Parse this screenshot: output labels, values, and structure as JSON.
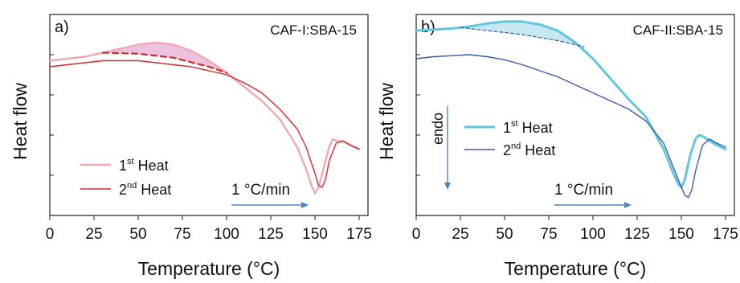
{
  "figure": {
    "panels": [
      "a)",
      "b)"
    ]
  },
  "chart_data": [
    {
      "type": "line",
      "panel_label": "a)",
      "title": "CAF-I:SBA-15",
      "xlabel": "Temperature (°C)",
      "ylabel": "Heat flow",
      "xlim": [
        0,
        180
      ],
      "ylim": [
        0,
        100
      ],
      "y_tick_labels_shown": false,
      "x_ticks": [
        0,
        25,
        50,
        75,
        100,
        125,
        150,
        175
      ],
      "annotation": "1 °C/min",
      "shaded_region": {
        "from": 25,
        "to": 100
      },
      "series": [
        {
          "name": "1st Heat",
          "legend_main": "1",
          "legend_sup": "st",
          "legend_tail": " Heat",
          "color": "#f0a8b4",
          "x": [
            0,
            10,
            20,
            30,
            40,
            50,
            60,
            70,
            80,
            90,
            100,
            110,
            120,
            130,
            140,
            145,
            148,
            150,
            152,
            155,
            158,
            160,
            163,
            166,
            170,
            175
          ],
          "y": [
            77,
            78,
            79,
            81,
            83,
            85,
            86,
            85,
            82,
            77,
            71,
            64,
            57,
            48,
            34,
            23,
            15,
            11,
            14,
            24,
            34,
            38,
            37,
            37,
            35,
            33
          ]
        },
        {
          "name": "2nd Heat",
          "legend_main": "2",
          "legend_sup": "nd",
          "legend_tail": " Heat",
          "color": "#d42a2a",
          "x": [
            0,
            10,
            20,
            30,
            40,
            50,
            60,
            70,
            80,
            90,
            100,
            110,
            120,
            130,
            140,
            145,
            150,
            152,
            154,
            156,
            158,
            162,
            166,
            170,
            175
          ],
          "y": [
            74,
            75,
            76,
            77,
            77,
            77,
            76,
            75,
            74,
            72,
            70,
            66,
            61,
            53,
            43,
            34,
            21,
            15,
            14,
            18,
            27,
            36,
            37,
            35,
            33
          ]
        },
        {
          "name": "baseline",
          "style": "dashed",
          "color": "#d42a2a",
          "x": [
            30,
            50,
            70,
            90,
            100
          ],
          "y": [
            81,
            80.5,
            78.5,
            74,
            71
          ]
        }
      ]
    },
    {
      "type": "line",
      "panel_label": "b)",
      "title": "CAF-II:SBA-15",
      "xlabel": "Temperature (°C)",
      "ylabel": "Heat flow",
      "xlim": [
        0,
        180
      ],
      "ylim": [
        0,
        100
      ],
      "y_tick_labels_shown": false,
      "x_ticks": [
        0,
        25,
        50,
        75,
        100,
        125,
        150,
        175
      ],
      "annotation": "1 °C/min",
      "endo_label": "endo",
      "shaded_region": {
        "from": 25,
        "to": 95
      },
      "series": [
        {
          "name": "1st Heat",
          "legend_main": "1",
          "legend_sup": "st",
          "legend_tail": " Heat",
          "color": "#5ec8dc",
          "x": [
            0,
            10,
            20,
            30,
            40,
            50,
            60,
            70,
            80,
            90,
            100,
            110,
            120,
            130,
            140,
            145,
            148,
            150,
            152,
            155,
            158,
            160,
            163,
            166,
            170,
            175
          ],
          "y": [
            92,
            92.5,
            93,
            94,
            95.5,
            96.5,
            96.5,
            95,
            92,
            86,
            78,
            68,
            58,
            49,
            33,
            22,
            16,
            14,
            18,
            30,
            38,
            40,
            39,
            37,
            35,
            33
          ]
        },
        {
          "name": "2nd Heat",
          "legend_main": "2",
          "legend_sup": "nd",
          "legend_tail": " Heat",
          "color": "#3a5aa8",
          "x": [
            0,
            10,
            20,
            30,
            40,
            50,
            60,
            70,
            80,
            90,
            100,
            110,
            120,
            130,
            140,
            145,
            150,
            152,
            154,
            156,
            158,
            162,
            166,
            170,
            175
          ],
          "y": [
            78,
            79,
            79.5,
            80,
            79,
            77.5,
            75,
            72,
            69,
            65,
            61,
            57,
            53,
            47,
            36,
            25,
            14,
            10,
            9,
            13,
            22,
            35,
            38,
            36,
            34
          ]
        },
        {
          "name": "baseline",
          "style": "dashed",
          "color": "#3a5aa8",
          "x": [
            25,
            40,
            60,
            80,
            95
          ],
          "y": [
            93.5,
            92,
            90,
            87,
            84
          ]
        }
      ]
    }
  ]
}
